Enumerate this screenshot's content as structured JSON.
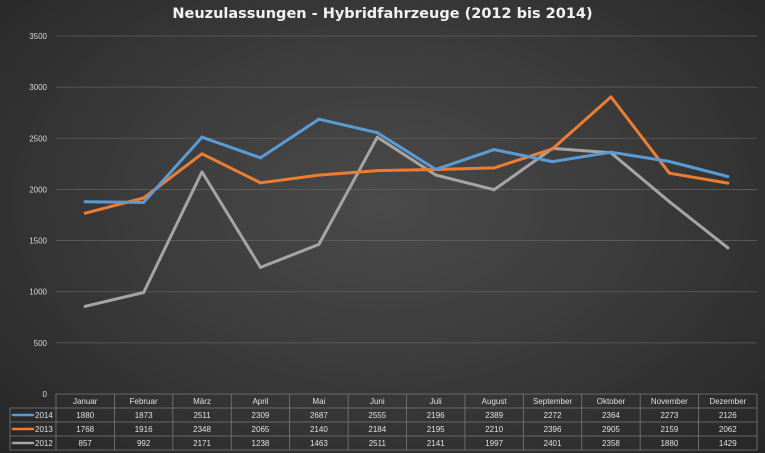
{
  "chart_data": {
    "type": "line",
    "title": "Neuzulassungen - Hybridfahrzeuge (2012 bis 2014)",
    "xlabel": "",
    "ylabel": "",
    "ylim": [
      0,
      3500
    ],
    "yticks": [
      0,
      500,
      1000,
      1500,
      2000,
      2500,
      3000,
      3500
    ],
    "grid": "horizontal",
    "legend": "data-table",
    "categories": [
      "Januar",
      "Februar",
      "März",
      "April",
      "Mai",
      "Juni",
      "Juli",
      "August",
      "September",
      "Oktober",
      "November",
      "Dezember"
    ],
    "series": [
      {
        "name": "2014",
        "color": "#5b9bd5",
        "values": [
          1880,
          1873,
          2511,
          2309,
          2687,
          2555,
          2196,
          2389,
          2272,
          2364,
          2273,
          2126
        ]
      },
      {
        "name": "2013",
        "color": "#ed7d31",
        "values": [
          1768,
          1916,
          2348,
          2065,
          2140,
          2184,
          2195,
          2210,
          2396,
          2905,
          2159,
          2062
        ]
      },
      {
        "name": "2012",
        "color": "#a5a5a5",
        "values": [
          857,
          992,
          2171,
          1238,
          1463,
          2511,
          2141,
          1997,
          2401,
          2358,
          1880,
          1429
        ]
      }
    ]
  }
}
